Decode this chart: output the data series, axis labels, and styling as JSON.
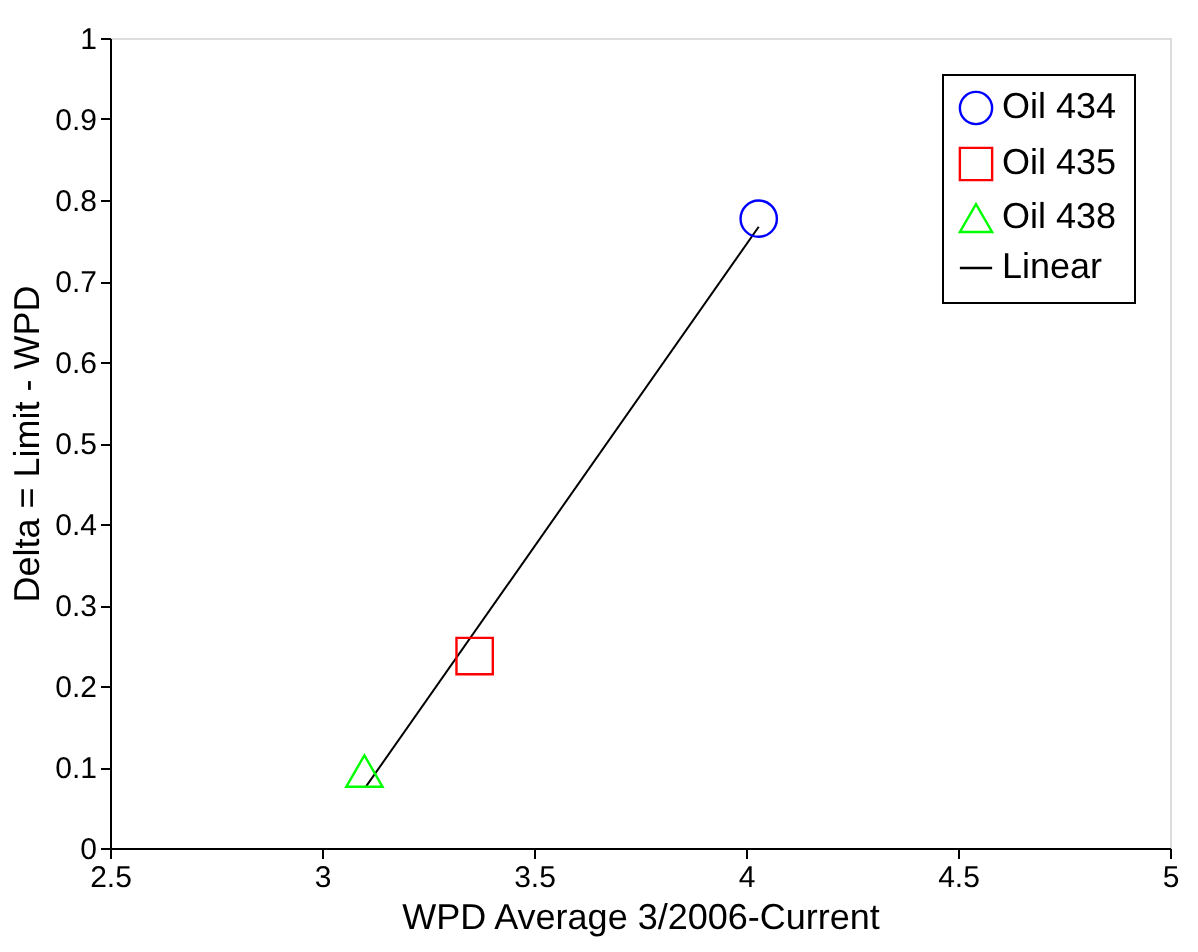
{
  "chart_data": {
    "type": "scatter",
    "xlabel": "WPD Average 3/2006-Current",
    "ylabel": "Delta = Limit - WPD",
    "xlim": [
      2.5,
      5
    ],
    "xticks": [
      2.5,
      3,
      3.5,
      4,
      4.5,
      5
    ],
    "ylim": [
      0,
      1
    ],
    "yticks": [
      0,
      0.1,
      0.2,
      0.3,
      0.4,
      0.5,
      0.6,
      0.7,
      0.8,
      0.9,
      1
    ],
    "grid": false,
    "legend": "top right",
    "series": [
      {
        "name": "Oil 434",
        "color": "#0000ff",
        "marker": "circle",
        "x": [
          4.03
        ],
        "values": [
          0.777
        ]
      },
      {
        "name": "Oil 435",
        "color": "#ff0000",
        "marker": "square",
        "x": [
          3.36
        ],
        "values": [
          0.237
        ]
      },
      {
        "name": "Oil 438",
        "color": "#00ff00",
        "marker": "triangle",
        "x": [
          3.1
        ],
        "values": [
          0.095
        ]
      },
      {
        "name": "Linear",
        "type": "line",
        "color": "#000000",
        "line_style": "solid",
        "marker": "none",
        "x": [
          3.104,
          4.03
        ],
        "values": [
          0.076,
          0.767
        ]
      }
    ]
  }
}
